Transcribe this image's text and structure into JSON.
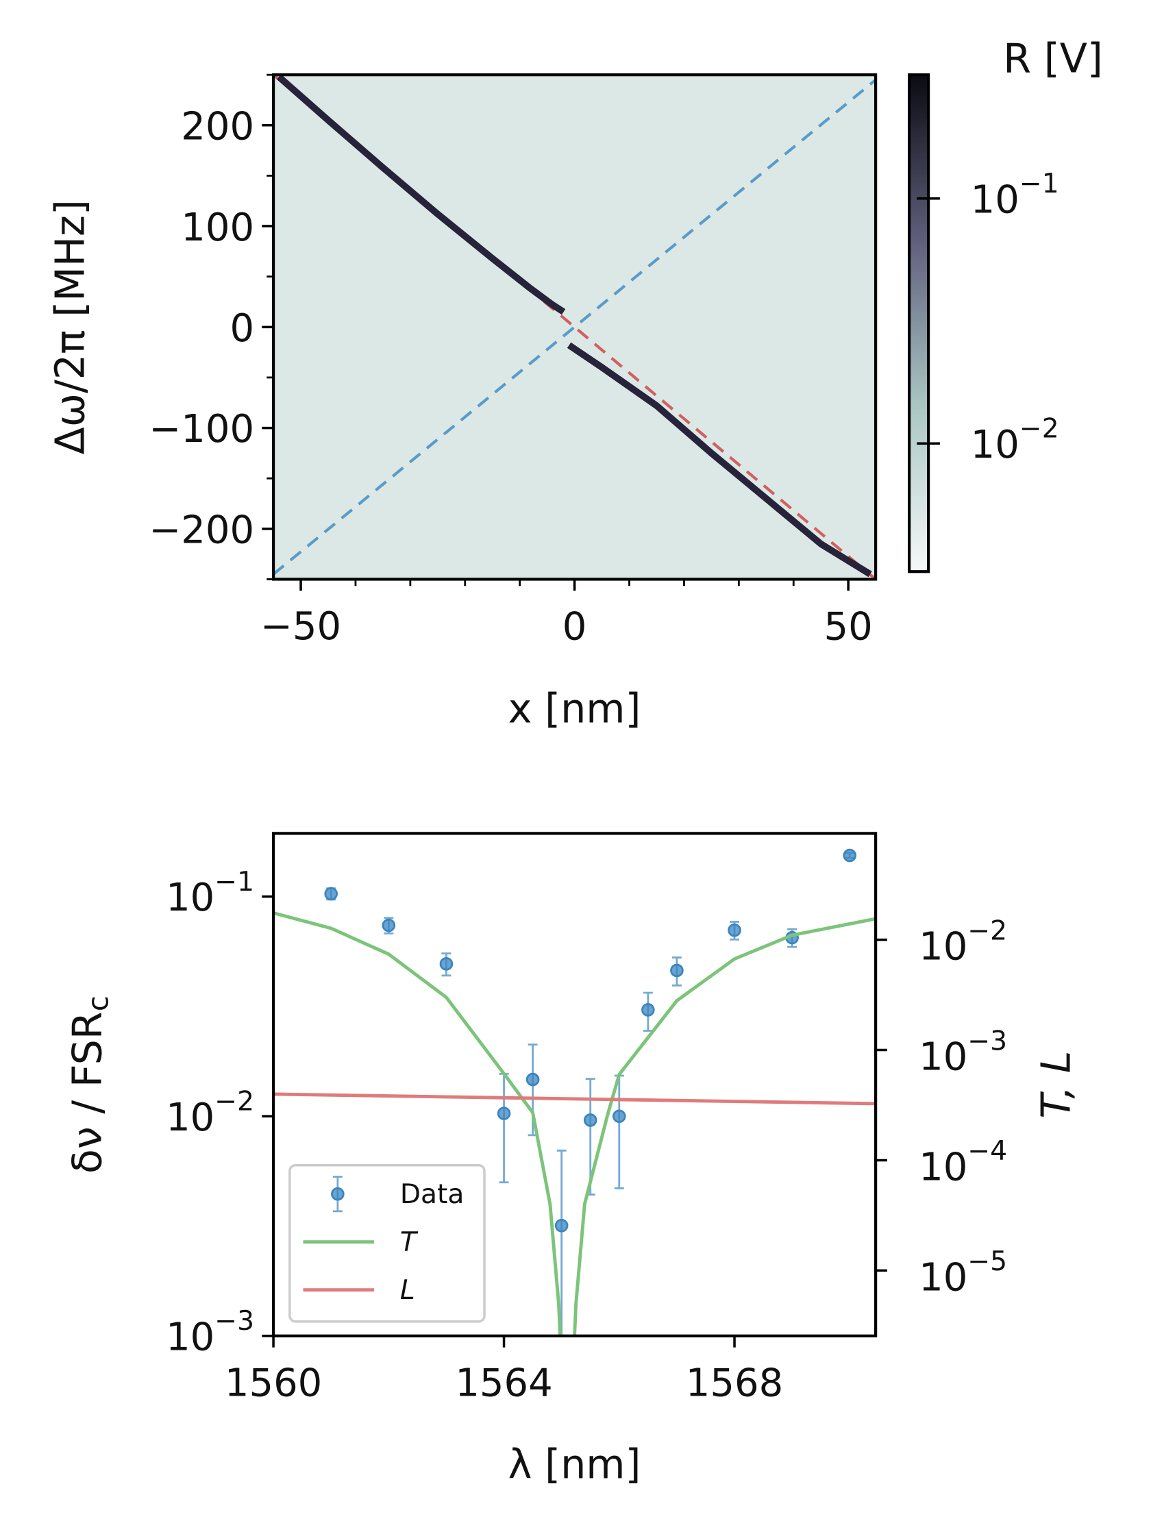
{
  "chart_data": [
    {
      "type": "heatmap",
      "xlabel": "x [nm]",
      "ylabel": "Δω/2π [MHz]",
      "xlim": [
        -55,
        55
      ],
      "ylim": [
        -250,
        250
      ],
      "xticks": [
        {
          "value": -50,
          "label": "−50"
        },
        0,
        50
      ],
      "yticks": [
        200,
        100,
        0,
        {
          "value": -100,
          "label": "−100"
        },
        {
          "value": -200,
          "label": "−200"
        }
      ],
      "xminor": [
        -40,
        -30,
        -20,
        -10,
        10,
        20,
        30,
        40
      ],
      "yminor": [
        -250,
        -150,
        -50,
        50,
        150,
        250
      ],
      "background": "#dce8e6",
      "series": [
        {
          "color": "#d2605e",
          "dash": true,
          "x": [
            -55,
            55
          ],
          "values": [
            250,
            -250
          ]
        },
        {
          "color": "#5b9bc8",
          "dash": true,
          "x": [
            -55,
            55
          ],
          "values": [
            -245,
            245
          ]
        },
        {
          "color": "#27233a",
          "x": [
            -54,
            -45,
            -35,
            -25,
            -15,
            -8,
            -4,
            -2,
            null,
            -1,
            5,
            15,
            25,
            35,
            45,
            54
          ],
          "values": [
            248,
            205,
            158,
            112,
            68,
            38,
            22,
            15,
            null,
            -18,
            -40,
            -78,
            -125,
            -170,
            -215,
            -245
          ]
        }
      ],
      "colorbar": {
        "label": "R [V]",
        "log": true,
        "lim": [
          0.003,
          0.32
        ],
        "ticks": [
          {
            "value": 0.1,
            "label": "10",
            "exponent": "−1"
          },
          {
            "value": 0.01,
            "label": "10",
            "exponent": "−2"
          }
        ],
        "colors": [
          "#f6f9f9",
          "#a9c6c3",
          "#5f5f7c",
          "#0b0b12"
        ]
      }
    },
    {
      "type": "errorbar",
      "xlabel": "λ [nm]",
      "ylabel": "δν / FSR",
      "ylabel_sub": "c",
      "y2label": "T, L",
      "xlim": [
        1560,
        1570.45
      ],
      "xticks": [
        1560,
        1564,
        1568
      ],
      "ylim": [
        0.001,
        0.194
      ],
      "ylog": true,
      "yticks": [
        {
          "value": 0.1,
          "label": "10",
          "exponent": "−1"
        },
        {
          "value": 0.01,
          "label": "10",
          "exponent": "−2"
        },
        {
          "value": 0.001,
          "label": "10",
          "exponent": "−3"
        }
      ],
      "y2lim": [
        2.55e-06,
        0.0922
      ],
      "y2log": true,
      "y2ticks": [
        {
          "value": 0.01,
          "label": "10",
          "exponent": "−2"
        },
        {
          "value": 0.001,
          "label": "10",
          "exponent": "−3"
        },
        {
          "value": 0.0001,
          "label": "10",
          "exponent": "−4"
        },
        {
          "value": 1e-05,
          "label": "10",
          "exponent": "−5"
        }
      ],
      "legend": "lower left",
      "series": [
        {
          "name": "Data",
          "kind": "errorbar",
          "color": "#3a85c0",
          "x": [
            1561,
            1562,
            1563,
            1564,
            1564.5,
            1565,
            1565.5,
            1566,
            1566.5,
            1567,
            1568,
            1569,
            1570
          ],
          "values": [
            0.103,
            0.074,
            0.0494,
            0.0103,
            0.0147,
            0.00318,
            0.0096,
            0.01,
            0.0305,
            0.0461,
            0.0703,
            0.065,
            0.154
          ],
          "errors": [
            0.006,
            0.006,
            0.0057,
            0.0053,
            0.0065,
            0.0038,
            0.0052,
            0.0053,
            0.006,
            0.0067,
            0.0065,
            0.006,
            0.004
          ]
        },
        {
          "name": "T",
          "kind": "line",
          "axis": "y2",
          "color": "#7cc47a",
          "x": [
            1560,
            1561,
            1562,
            1563,
            1564,
            1564.5,
            1564.8,
            1564.95,
            1565.1,
            1565.25,
            1565.4,
            1565.8,
            1566,
            1567,
            1568,
            1569,
            1570.45
          ],
          "values": [
            0.0175,
            0.0127,
            0.0074,
            0.003,
            0.00061,
            0.00027,
            4e-05,
            5e-06,
            1e-07,
            5e-06,
            4e-05,
            0.00026,
            0.0006,
            0.0028,
            0.0067,
            0.011,
            0.0155
          ]
        },
        {
          "name": "L",
          "kind": "line",
          "axis": "y2",
          "color": "#e07b7b",
          "x": [
            1560,
            1570.45
          ],
          "values": [
            0.000398,
            0.000326
          ]
        }
      ]
    }
  ]
}
